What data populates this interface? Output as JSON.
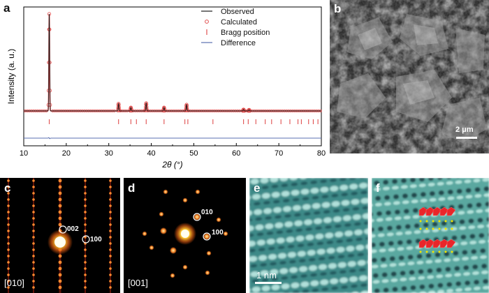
{
  "panels": {
    "a": {
      "letter": "a"
    },
    "b": {
      "letter": "b",
      "scalebar": "2 μm"
    },
    "c": {
      "letter": "c",
      "zone_axis": "[010]",
      "spots": [
        "002",
        "100"
      ]
    },
    "d": {
      "letter": "d",
      "zone_axis": "[001]",
      "spots": [
        "010",
        "100"
      ]
    },
    "e": {
      "letter": "e",
      "scalebar": "1 nm"
    },
    "f": {
      "letter": "f"
    }
  },
  "chart_data": {
    "type": "line",
    "title": "",
    "xlabel": "2θ (°)",
    "ylabel": "Intensity (a. u.)",
    "xlim": [
      10,
      80
    ],
    "xticks": [
      10,
      20,
      30,
      40,
      50,
      60,
      70,
      80
    ],
    "legend": {
      "placement": "top-right",
      "entries": [
        "Observed",
        "Calculated",
        "Bragg position",
        "Difference"
      ]
    },
    "colors": {
      "observed": "#1a1a1a",
      "calculated": "#e05050",
      "bragg": "#e05050",
      "difference": "#5a6fb0"
    },
    "peaks": [
      {
        "x": 16.0,
        "height": 1.0
      },
      {
        "x": 32.3,
        "height": 0.075
      },
      {
        "x": 35.2,
        "height": 0.035
      },
      {
        "x": 38.8,
        "height": 0.08
      },
      {
        "x": 43.0,
        "height": 0.035
      },
      {
        "x": 48.3,
        "height": 0.065
      },
      {
        "x": 61.7,
        "height": 0.015
      },
      {
        "x": 63.0,
        "height": 0.012
      }
    ],
    "bragg_positions": [
      16.0,
      32.3,
      35.2,
      36.5,
      38.8,
      43.0,
      47.9,
      48.6,
      54.5,
      61.7,
      62.8,
      64.6,
      66.8,
      68.3,
      70.5,
      72.6,
      74.5,
      75.3,
      77.0,
      78.1,
      79.2
    ]
  }
}
